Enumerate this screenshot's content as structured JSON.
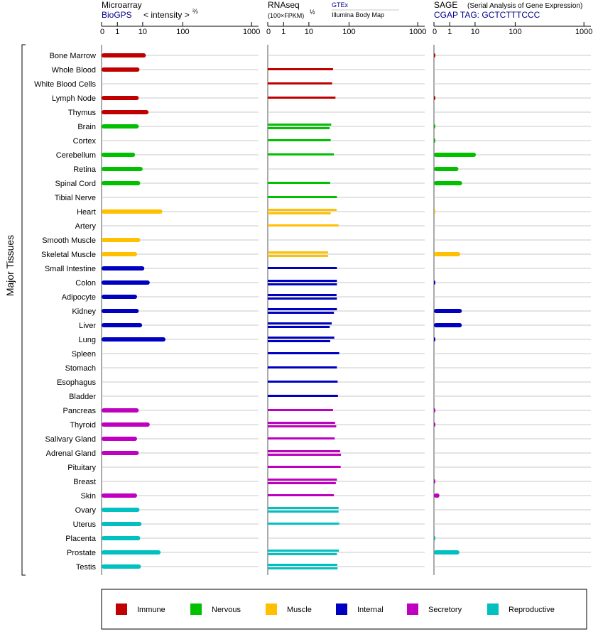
{
  "colors": {
    "Immune": "#c00000",
    "Nervous": "#00c000",
    "Muscle": "#ffc000",
    "Internal": "#0000c0",
    "Secretory": "#c000c0",
    "Reproductive": "#00c0c0",
    "link": "#00008b",
    "gridline": "#c8c8c8",
    "axis": "#555555"
  },
  "panels": {
    "microarray": {
      "title": "Microarray",
      "source": "BioGPS",
      "scale_label": "< intensity >",
      "scale_exp": "⅔"
    },
    "rnaseq": {
      "title": "RNAseq",
      "scale_label": "(100×FPKM)",
      "scale_exp": "½",
      "source1": "GTEx",
      "source2": "Illumina Body Map"
    },
    "sage": {
      "title": "SAGE",
      "subtitle": "(Serial Analysis of Gene Expression)",
      "tag_label": "CGAP TAG: GCTCTTTCCC"
    }
  },
  "y_axis_label": "Major Tissues",
  "legend": [
    "Immune",
    "Nervous",
    "Muscle",
    "Internal",
    "Secretory",
    "Reproductive"
  ],
  "chart_data": [
    {
      "type": "bar",
      "title": "Microarray",
      "xlabel": "< intensity >⅔",
      "scale_exponent": 0.6667,
      "xlim": [
        0,
        1000
      ],
      "ticks": [
        0,
        1,
        10,
        100,
        1000
      ],
      "categories": [
        "Bone Marrow",
        "Whole Blood",
        "White Blood Cells",
        "Lymph Node",
        "Thymus",
        "Brain",
        "Cortex",
        "Cerebellum",
        "Retina",
        "Spinal Cord",
        "Tibial Nerve",
        "Heart",
        "Artery",
        "Smooth Muscle",
        "Skeletal Muscle",
        "Small Intestine",
        "Colon",
        "Adipocyte",
        "Kidney",
        "Liver",
        "Lung",
        "Spleen",
        "Stomach",
        "Esophagus",
        "Bladder",
        "Pancreas",
        "Thyroid",
        "Salivary Gland",
        "Adrenal Gland",
        "Pituitary",
        "Breast",
        "Skin",
        "Ovary",
        "Uterus",
        "Placenta",
        "Prostate",
        "Testis"
      ],
      "groups": [
        "Immune",
        "Immune",
        "Immune",
        "Immune",
        "Immune",
        "Nervous",
        "Nervous",
        "Nervous",
        "Nervous",
        "Nervous",
        "Nervous",
        "Muscle",
        "Muscle",
        "Muscle",
        "Muscle",
        "Internal",
        "Internal",
        "Internal",
        "Internal",
        "Internal",
        "Internal",
        "Internal",
        "Internal",
        "Internal",
        "Internal",
        "Secretory",
        "Secretory",
        "Secretory",
        "Secretory",
        "Secretory",
        "Secretory",
        "Secretory",
        "Reproductive",
        "Reproductive",
        "Reproductive",
        "Reproductive",
        "Reproductive"
      ],
      "values": [
        [
          12
        ],
        [
          7.5
        ],
        [],
        [
          7
        ],
        [
          14
        ],
        [
          7
        ],
        [],
        [
          5
        ],
        [
          10
        ],
        [
          8
        ],
        [],
        [
          31
        ],
        [],
        [
          8
        ],
        [
          6
        ],
        [
          11
        ],
        [
          15
        ],
        [
          6
        ],
        [
          7
        ],
        [
          9.5
        ],
        [
          37
        ],
        [],
        [],
        [],
        [],
        [
          7
        ],
        [
          15
        ],
        [
          6
        ],
        [
          7
        ],
        [],
        [],
        [
          6
        ],
        [
          7.5
        ],
        [
          9
        ],
        [
          8
        ],
        [
          28
        ],
        [
          8.5
        ]
      ]
    },
    {
      "type": "bar",
      "title": "RNAseq",
      "xlabel": "(100×FPKM)½",
      "scale_exponent": 0.5,
      "xlim": [
        0,
        1000
      ],
      "ticks": [
        0,
        1,
        10,
        100,
        1000
      ],
      "series_sources": [
        "GTEx",
        "Illumina Body Map"
      ],
      "categories": [
        "Bone Marrow",
        "Whole Blood",
        "White Blood Cells",
        "Lymph Node",
        "Thymus",
        "Brain",
        "Cortex",
        "Cerebellum",
        "Retina",
        "Spinal Cord",
        "Tibial Nerve",
        "Heart",
        "Artery",
        "Smooth Muscle",
        "Skeletal Muscle",
        "Small Intestine",
        "Colon",
        "Adipocyte",
        "Kidney",
        "Liver",
        "Lung",
        "Spleen",
        "Stomach",
        "Esophagus",
        "Bladder",
        "Pancreas",
        "Thyroid",
        "Salivary Gland",
        "Adrenal Gland",
        "Pituitary",
        "Breast",
        "Skin",
        "Ovary",
        "Uterus",
        "Placenta",
        "Prostate",
        "Testis"
      ],
      "groups": [
        "Immune",
        "Immune",
        "Immune",
        "Immune",
        "Immune",
        "Nervous",
        "Nervous",
        "Nervous",
        "Nervous",
        "Nervous",
        "Nervous",
        "Muscle",
        "Muscle",
        "Muscle",
        "Muscle",
        "Internal",
        "Internal",
        "Internal",
        "Internal",
        "Internal",
        "Internal",
        "Internal",
        "Internal",
        "Internal",
        "Internal",
        "Secretory",
        "Secretory",
        "Secretory",
        "Secretory",
        "Secretory",
        "Secretory",
        "Secretory",
        "Reproductive",
        "Reproductive",
        "Reproductive",
        "Reproductive",
        "Reproductive"
      ],
      "values": [
        [],
        [
          40
        ],
        [
          38
        ],
        [
          46
        ],
        [],
        [
          36,
          33
        ],
        [
          35
        ],
        [
          42
        ],
        [],
        [
          34
        ],
        [
          50
        ],
        [
          49,
          35
        ],
        [
          55
        ],
        [],
        [
          30,
          30
        ],
        [
          50
        ],
        [
          50,
          50
        ],
        [
          49,
          50
        ],
        [
          50,
          42
        ],
        [
          37,
          33
        ],
        [
          43,
          34
        ],
        [
          57
        ],
        [
          50
        ],
        [
          52
        ],
        [
          53
        ],
        [
          40
        ],
        [
          45,
          48
        ],
        [
          44
        ],
        [
          60,
          63
        ],
        [
          62
        ],
        [
          50,
          47
        ],
        [
          42
        ],
        [
          55,
          55
        ],
        [
          57
        ],
        [],
        [
          56,
          50
        ],
        [
          51,
          52
        ]
      ]
    },
    {
      "type": "bar",
      "title": "SAGE",
      "xlabel": "CGAP TAG: GCTCTTTCCC",
      "xlim": [
        0,
        1000
      ],
      "ticks": [
        0,
        1,
        10,
        100,
        1000
      ],
      "categories": [
        "Bone Marrow",
        "Whole Blood",
        "White Blood Cells",
        "Lymph Node",
        "Thymus",
        "Brain",
        "Cortex",
        "Cerebellum",
        "Retina",
        "Spinal Cord",
        "Tibial Nerve",
        "Heart",
        "Artery",
        "Smooth Muscle",
        "Skeletal Muscle",
        "Small Intestine",
        "Colon",
        "Adipocyte",
        "Kidney",
        "Liver",
        "Lung",
        "Spleen",
        "Stomach",
        "Esophagus",
        "Bladder",
        "Pancreas",
        "Thyroid",
        "Salivary Gland",
        "Adrenal Gland",
        "Pituitary",
        "Breast",
        "Skin",
        "Ovary",
        "Uterus",
        "Placenta",
        "Prostate",
        "Testis"
      ],
      "groups": [
        "Immune",
        "Immune",
        "Immune",
        "Immune",
        "Immune",
        "Nervous",
        "Nervous",
        "Nervous",
        "Nervous",
        "Nervous",
        "Nervous",
        "Muscle",
        "Muscle",
        "Muscle",
        "Muscle",
        "Internal",
        "Internal",
        "Internal",
        "Internal",
        "Internal",
        "Internal",
        "Internal",
        "Internal",
        "Internal",
        "Internal",
        "Secretory",
        "Secretory",
        "Secretory",
        "Secretory",
        "Secretory",
        "Secretory",
        "Secretory",
        "Reproductive",
        "Reproductive",
        "Reproductive",
        "Reproductive",
        "Reproductive"
      ],
      "values": [
        [
          0.02
        ],
        [],
        [],
        [
          0.02
        ],
        [],
        [
          0.02
        ],
        [
          0.02
        ],
        [
          10.5
        ],
        [
          2.2
        ],
        [
          3.1
        ],
        [],
        [
          0.02
        ],
        [],
        [],
        [
          2.6
        ],
        [],
        [
          0.02
        ],
        [],
        [
          3
        ],
        [
          3
        ],
        [
          0.02
        ],
        [],
        [],
        [],
        [],
        [
          0.02
        ],
        [
          0.02
        ],
        [],
        [],
        [],
        [
          0.02
        ],
        [
          0.35
        ],
        [],
        [],
        [
          0.02
        ],
        [
          2.4
        ],
        []
      ]
    }
  ]
}
